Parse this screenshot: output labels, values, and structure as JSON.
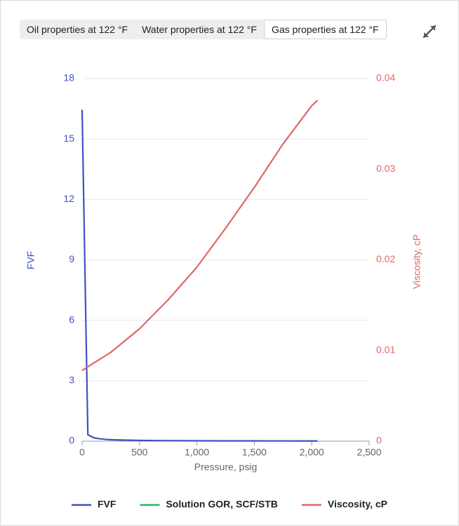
{
  "tabs": [
    "Oil properties at 122 °F",
    "Water properties at 122 °F",
    "Gas properties at 122 °F"
  ],
  "selected_tab": 2,
  "chart_data": {
    "type": "line",
    "x": [
      0,
      50,
      100,
      150,
      200,
      250,
      500,
      750,
      1000,
      1250,
      1500,
      1750,
      2000,
      2050
    ],
    "series": [
      {
        "name": "FVF",
        "color": "#3f51c8",
        "values": [
          16.45,
          0.32,
          0.17,
          0.12,
          0.09,
          0.07,
          0.035,
          0.024,
          0.018,
          0.014,
          0.012,
          0.01,
          0.009,
          0.009
        ]
      },
      {
        "name": "Solution GOR, SCF/STB",
        "color": "#2bb55a",
        "values": [
          null,
          null,
          null,
          null,
          null,
          null,
          null,
          null,
          null,
          null,
          null,
          null,
          null,
          null
        ]
      },
      {
        "name": "Viscosity, cP",
        "color": "#e06666",
        "axis": "y2",
        "values": [
          0.0078,
          0.0082,
          0.0086,
          0.009,
          0.0094,
          0.0098,
          0.0124,
          0.0156,
          0.0192,
          0.0235,
          0.028,
          0.0328,
          0.037,
          0.0376
        ]
      }
    ],
    "x_label": "Pressure, psig",
    "y_label": "FVF",
    "y2_label": "Viscosity, cP",
    "xlim": [
      0,
      2500
    ],
    "xticks": [
      0,
      500,
      {
        "value": 1000,
        "label": "1,000"
      },
      {
        "value": 1500,
        "label": "1,500"
      },
      {
        "value": 2000,
        "label": "2,000"
      },
      {
        "value": 2500,
        "label": "2,500"
      }
    ],
    "ylim": [
      0,
      18
    ],
    "yticks": [
      0,
      3,
      6,
      9,
      12,
      15,
      18
    ],
    "y2lim": [
      0,
      0.04
    ],
    "y2ticks": [
      0,
      0.01,
      0.02,
      0.03,
      0.04
    ],
    "grid": true,
    "legend": "bottom"
  }
}
